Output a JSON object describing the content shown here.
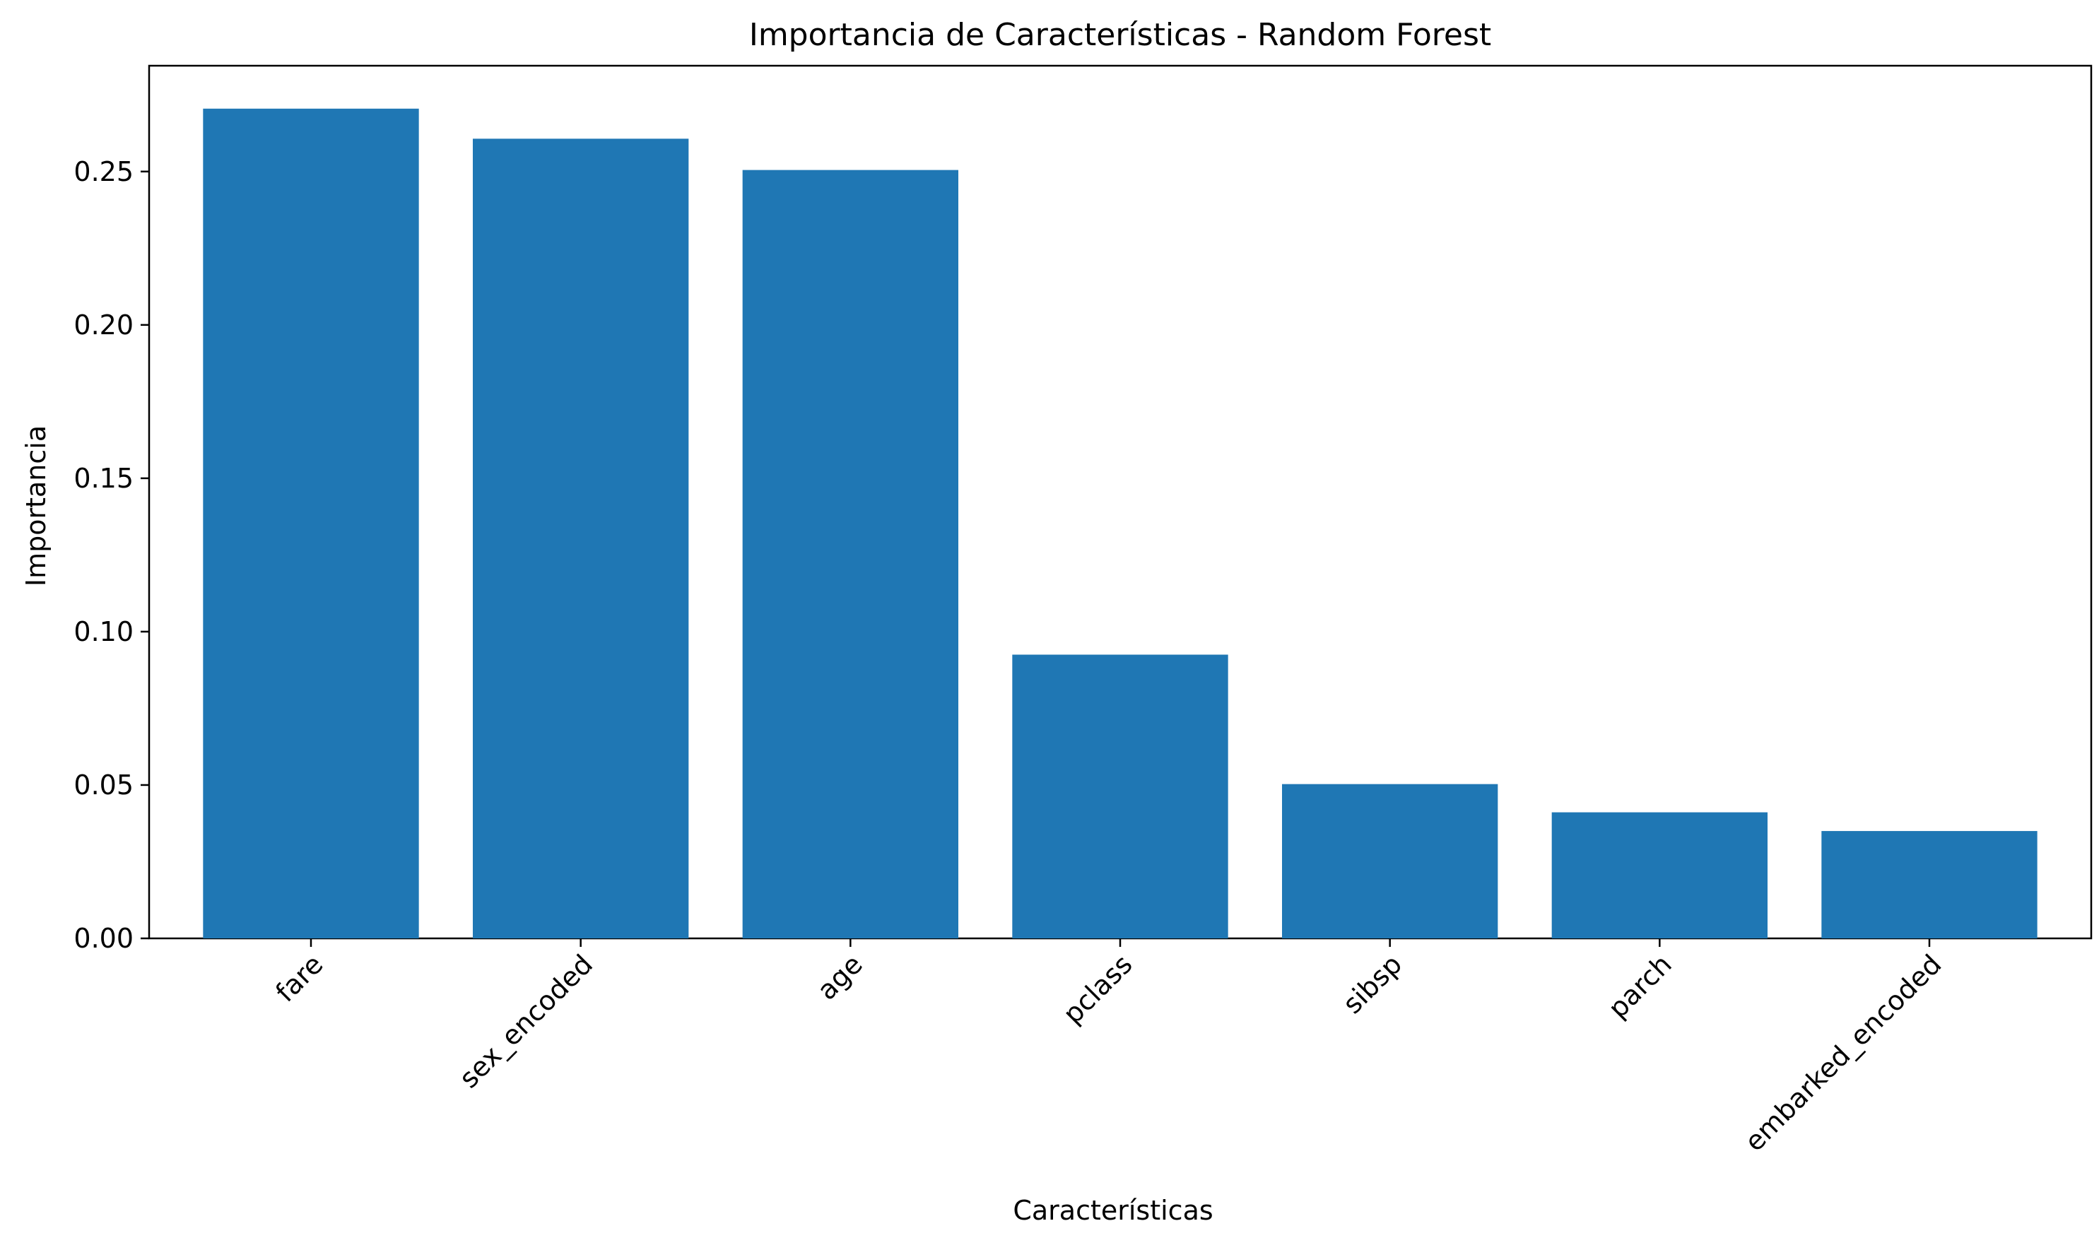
{
  "chart_data": {
    "type": "bar",
    "title": "Importancia de Características - Random Forest",
    "xlabel": "Características",
    "ylabel": "Importancia",
    "categories": [
      "fare",
      "sex_encoded",
      "age",
      "pclass",
      "sibsp",
      "parch",
      "embarked_encoded"
    ],
    "values": [
      0.2705,
      0.2607,
      0.2505,
      0.0925,
      0.0503,
      0.0411,
      0.035
    ],
    "ylim": [
      0,
      0.2845
    ],
    "yticks": [
      0.0,
      0.05,
      0.1,
      0.15,
      0.2,
      0.25
    ],
    "ytick_labels": [
      "0.00",
      "0.05",
      "0.10",
      "0.15",
      "0.20",
      "0.25"
    ],
    "grid": false,
    "legend": "none",
    "bar_color": "#1f77b4"
  }
}
